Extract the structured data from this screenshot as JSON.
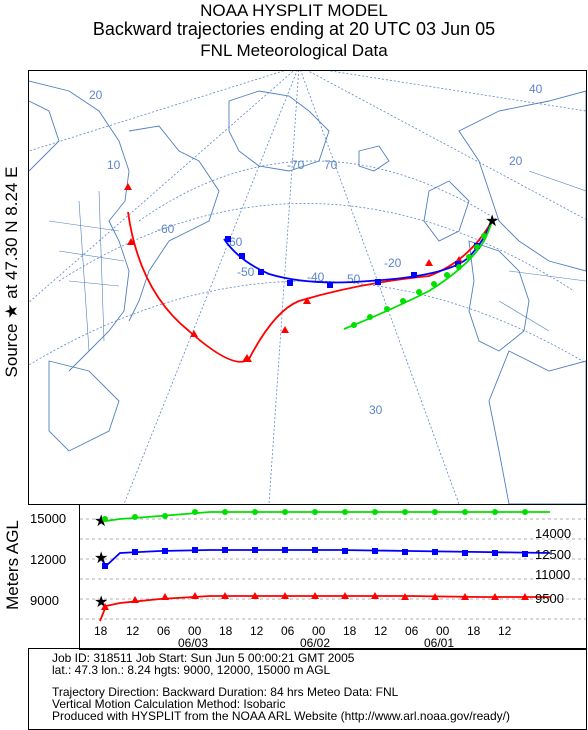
{
  "title": {
    "line1": "NOAA HYSPLIT MODEL",
    "line2": "Backward trajectories ending at 20 UTC 03 Jun 05",
    "line3": "FNL  Meteorological Data"
  },
  "source_label": "Source ★ at   47.30 N    8.24 E",
  "map": {
    "lat_labels": [
      "20",
      "40",
      "10",
      "20",
      "-60",
      "60",
      "-70",
      "70",
      "-40",
      "50",
      "-20",
      "-50",
      "30"
    ],
    "colors": {
      "red": "#ff0000",
      "blue": "#0000ff",
      "green": "#00e000",
      "map_lines": "#4f7fbf",
      "grid": "#5c85c8"
    }
  },
  "vertical_plot": {
    "y_axis_title": "Meters AGL",
    "left_ticks": [
      "15000",
      "12000",
      "9000"
    ],
    "right_ticks": [
      "14000",
      "12500",
      "11000",
      "9500"
    ],
    "x_ticks": [
      "18",
      "12",
      "06",
      "00",
      "18",
      "12",
      "06",
      "00",
      "18",
      "12",
      "06",
      "00",
      "18",
      "12"
    ],
    "x_dates": [
      "06/03",
      "06/02",
      "06/01"
    ]
  },
  "footer": {
    "line1": "Job ID: 318511          Job Start: Sun Jun  5 00:00:21 GMT 2005",
    "line2": "lat.: 47.3   lon.: 8.24   hgts: 9000, 12000, 15000 m AGL",
    "line3": "Trajectory Direction: Backward    Duration: 84 hrs    Meteo Data: FNL",
    "line4": "Vertical Motion Calculation Method: Isobaric",
    "line5": "Produced with HYSPLIT from the NOAA ARL Website (http://www.arl.noaa.gov/ready/)"
  }
}
